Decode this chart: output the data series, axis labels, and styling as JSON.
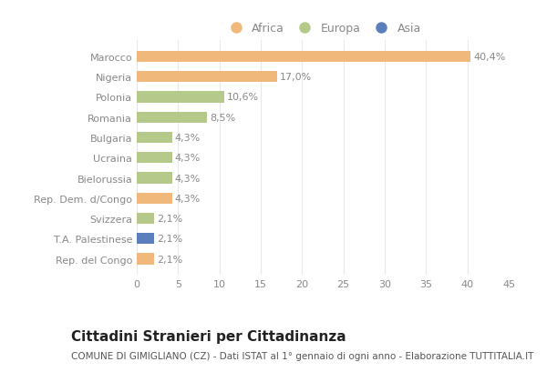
{
  "categories": [
    "Marocco",
    "Nigeria",
    "Polonia",
    "Romania",
    "Bulgaria",
    "Ucraina",
    "Bielorussia",
    "Rep. Dem. d/Congo",
    "Svizzera",
    "T.A. Palestinese",
    "Rep. del Congo"
  ],
  "values": [
    40.4,
    17.0,
    10.6,
    8.5,
    4.3,
    4.3,
    4.3,
    4.3,
    2.1,
    2.1,
    2.1
  ],
  "labels": [
    "40,4%",
    "17,0%",
    "10,6%",
    "8,5%",
    "4,3%",
    "4,3%",
    "4,3%",
    "4,3%",
    "2,1%",
    "2,1%",
    "2,1%"
  ],
  "colors": [
    "#f0b87a",
    "#f0b87a",
    "#b5c98a",
    "#b5c98a",
    "#b5c98a",
    "#b5c98a",
    "#b5c98a",
    "#f0b87a",
    "#b5c98a",
    "#5b7fbd",
    "#f0b87a"
  ],
  "legend_labels": [
    "Africa",
    "Europa",
    "Asia"
  ],
  "legend_colors": [
    "#f0b87a",
    "#b5c98a",
    "#5b7fbd"
  ],
  "xlim": [
    0,
    45
  ],
  "xticks": [
    0,
    5,
    10,
    15,
    20,
    25,
    30,
    35,
    40,
    45
  ],
  "title": "Cittadini Stranieri per Cittadinanza",
  "subtitle": "COMUNE DI GIMIGLIANO (CZ) - Dati ISTAT al 1° gennaio di ogni anno - Elaborazione TUTTITALIA.IT",
  "background_color": "#ffffff",
  "grid_color": "#e8e8e8",
  "bar_height": 0.55,
  "title_fontsize": 11,
  "subtitle_fontsize": 7.5,
  "label_fontsize": 8,
  "tick_fontsize": 8,
  "legend_fontsize": 9,
  "ytick_color": "#888888",
  "xtick_color": "#888888",
  "label_color": "#888888"
}
